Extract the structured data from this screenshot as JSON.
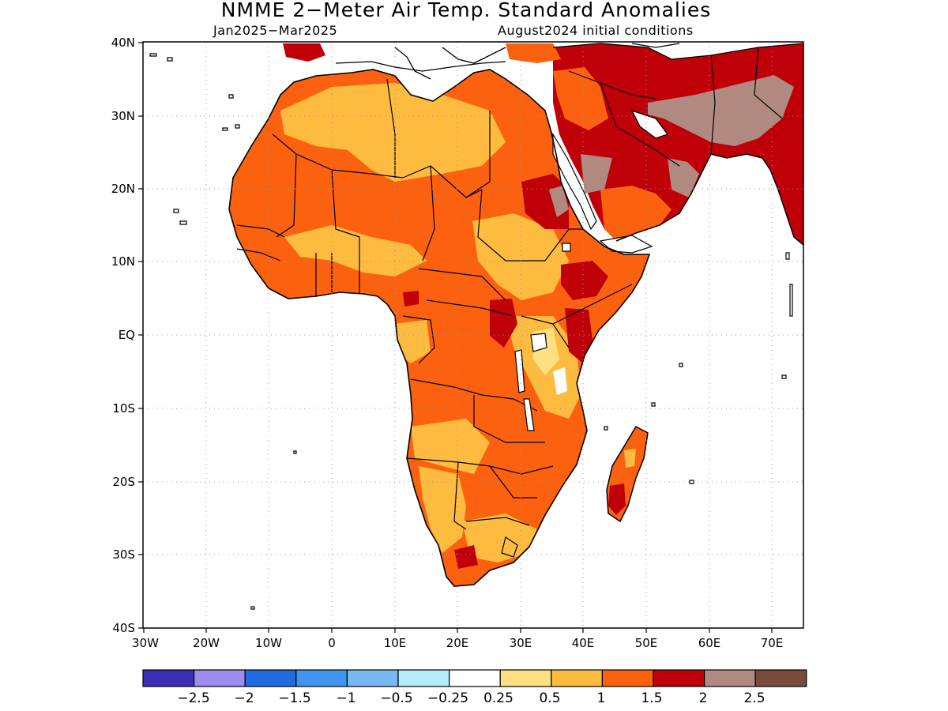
{
  "title": "NMME 2−Meter Air Temp. Standard Anomalies",
  "subtitle_left": "Jan2025−Mar2025",
  "subtitle_right": "August2024 initial conditions",
  "map": {
    "lon_range": [
      -30,
      75
    ],
    "lat_range": [
      -40,
      40
    ],
    "lat_ticks": [
      "40N",
      "30N",
      "20N",
      "10N",
      "EQ",
      "10S",
      "20S",
      "30S",
      "40S"
    ],
    "lon_ticks": [
      "30W",
      "20W",
      "10W",
      "0",
      "10E",
      "20E",
      "30E",
      "40E",
      "50E",
      "60E",
      "70E"
    ],
    "gridlines": "dotted"
  },
  "colorbar": {
    "colors": [
      "#3b2fb8",
      "#9d8cf0",
      "#1f6be0",
      "#3f95f0",
      "#78b8f5",
      "#b4ecf7",
      "#ffffff",
      "#ffe080",
      "#fdbc3f",
      "#fc6110",
      "#c00008",
      "#b08a80",
      "#7a4a3c"
    ],
    "labels": [
      "−2.5",
      "−2",
      "−1.5",
      "−1",
      "−0.5",
      "−0.25",
      "0.25",
      "0.5",
      "1",
      "1.5",
      "2",
      "2.5"
    ]
  }
}
